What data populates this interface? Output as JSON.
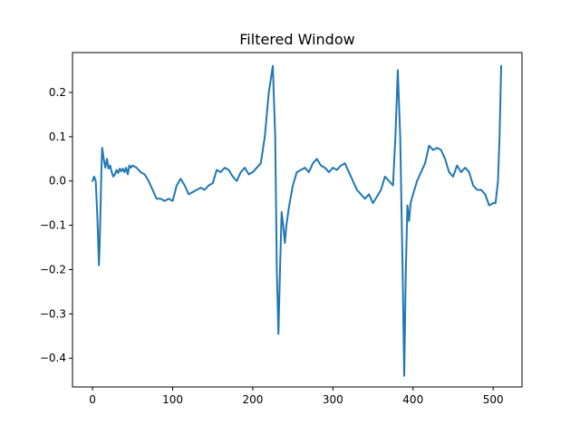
{
  "chart_data": {
    "type": "line",
    "title": "Filtered Window",
    "xlabel": "",
    "ylabel": "",
    "xlim": [
      -25,
      536
    ],
    "ylim": [
      -0.465,
      0.29
    ],
    "grid": false,
    "line_color": "#1f77b4",
    "xticks": [
      0,
      100,
      200,
      300,
      400,
      500
    ],
    "xtick_labels": [
      "0",
      "100",
      "200",
      "300",
      "400",
      "500"
    ],
    "yticks": [
      -0.4,
      -0.3,
      -0.2,
      -0.1,
      0.0,
      0.1,
      0.2
    ],
    "ytick_labels": [
      "−0.4",
      "−0.3",
      "−0.2",
      "−0.1",
      "0.0",
      "0.1",
      "0.2"
    ],
    "series": [
      {
        "name": "",
        "points": [
          [
            0,
            0.0
          ],
          [
            2,
            0.01
          ],
          [
            4,
            0.0
          ],
          [
            6,
            -0.08
          ],
          [
            8,
            -0.19
          ],
          [
            9,
            -0.14
          ],
          [
            11,
            0.02
          ],
          [
            12,
            0.075
          ],
          [
            14,
            0.05
          ],
          [
            16,
            0.03
          ],
          [
            18,
            0.05
          ],
          [
            20,
            0.028
          ],
          [
            22,
            0.035
          ],
          [
            24,
            0.02
          ],
          [
            26,
            0.01
          ],
          [
            28,
            0.015
          ],
          [
            30,
            0.025
          ],
          [
            32,
            0.018
          ],
          [
            34,
            0.028
          ],
          [
            36,
            0.022
          ],
          [
            38,
            0.028
          ],
          [
            40,
            0.02
          ],
          [
            42,
            0.03
          ],
          [
            44,
            0.015
          ],
          [
            46,
            0.035
          ],
          [
            48,
            0.03
          ],
          [
            50,
            0.035
          ],
          [
            55,
            0.03
          ],
          [
            60,
            0.02
          ],
          [
            65,
            0.015
          ],
          [
            70,
            0.0
          ],
          [
            75,
            -0.02
          ],
          [
            80,
            -0.04
          ],
          [
            85,
            -0.04
          ],
          [
            90,
            -0.045
          ],
          [
            95,
            -0.04
          ],
          [
            100,
            -0.045
          ],
          [
            105,
            -0.01
          ],
          [
            110,
            0.005
          ],
          [
            115,
            -0.01
          ],
          [
            120,
            -0.03
          ],
          [
            125,
            -0.025
          ],
          [
            130,
            -0.02
          ],
          [
            135,
            -0.015
          ],
          [
            140,
            -0.02
          ],
          [
            145,
            -0.01
          ],
          [
            150,
            -0.005
          ],
          [
            155,
            0.025
          ],
          [
            160,
            0.02
          ],
          [
            165,
            0.03
          ],
          [
            170,
            0.025
          ],
          [
            175,
            0.01
          ],
          [
            180,
            0.0
          ],
          [
            185,
            0.02
          ],
          [
            190,
            0.03
          ],
          [
            195,
            0.015
          ],
          [
            200,
            0.02
          ],
          [
            205,
            0.03
          ],
          [
            210,
            0.04
          ],
          [
            215,
            0.1
          ],
          [
            220,
            0.2
          ],
          [
            225,
            0.26
          ],
          [
            228,
            0.1
          ],
          [
            230,
            -0.2
          ],
          [
            232,
            -0.345
          ],
          [
            234,
            -0.2
          ],
          [
            236,
            -0.07
          ],
          [
            238,
            -0.1
          ],
          [
            240,
            -0.14
          ],
          [
            242,
            -0.1
          ],
          [
            245,
            -0.06
          ],
          [
            250,
            -0.01
          ],
          [
            255,
            0.02
          ],
          [
            260,
            0.025
          ],
          [
            265,
            0.03
          ],
          [
            270,
            0.02
          ],
          [
            275,
            0.04
          ],
          [
            280,
            0.05
          ],
          [
            285,
            0.035
          ],
          [
            290,
            0.03
          ],
          [
            295,
            0.02
          ],
          [
            300,
            0.03
          ],
          [
            305,
            0.025
          ],
          [
            310,
            0.035
          ],
          [
            315,
            0.04
          ],
          [
            320,
            0.02
          ],
          [
            325,
            0.0
          ],
          [
            330,
            -0.02
          ],
          [
            335,
            -0.03
          ],
          [
            340,
            -0.04
          ],
          [
            345,
            -0.03
          ],
          [
            350,
            -0.05
          ],
          [
            355,
            -0.035
          ],
          [
            360,
            -0.02
          ],
          [
            365,
            0.01
          ],
          [
            370,
            0.0
          ],
          [
            375,
            -0.01
          ],
          [
            378,
            0.1
          ],
          [
            381,
            0.25
          ],
          [
            384,
            0.1
          ],
          [
            387,
            -0.2
          ],
          [
            389,
            -0.44
          ],
          [
            391,
            -0.2
          ],
          [
            393,
            -0.055
          ],
          [
            395,
            -0.09
          ],
          [
            397,
            -0.05
          ],
          [
            400,
            -0.03
          ],
          [
            405,
            0.0
          ],
          [
            410,
            0.02
          ],
          [
            415,
            0.04
          ],
          [
            420,
            0.08
          ],
          [
            425,
            0.07
          ],
          [
            430,
            0.075
          ],
          [
            435,
            0.07
          ],
          [
            440,
            0.05
          ],
          [
            445,
            0.02
          ],
          [
            450,
            0.01
          ],
          [
            455,
            0.035
          ],
          [
            460,
            0.02
          ],
          [
            465,
            0.03
          ],
          [
            470,
            0.02
          ],
          [
            475,
            -0.01
          ],
          [
            480,
            -0.02
          ],
          [
            485,
            -0.02
          ],
          [
            490,
            -0.03
          ],
          [
            495,
            -0.055
          ],
          [
            500,
            -0.05
          ],
          [
            503,
            -0.05
          ],
          [
            506,
            0.0
          ],
          [
            508,
            0.1
          ],
          [
            510,
            0.26
          ]
        ]
      }
    ]
  }
}
